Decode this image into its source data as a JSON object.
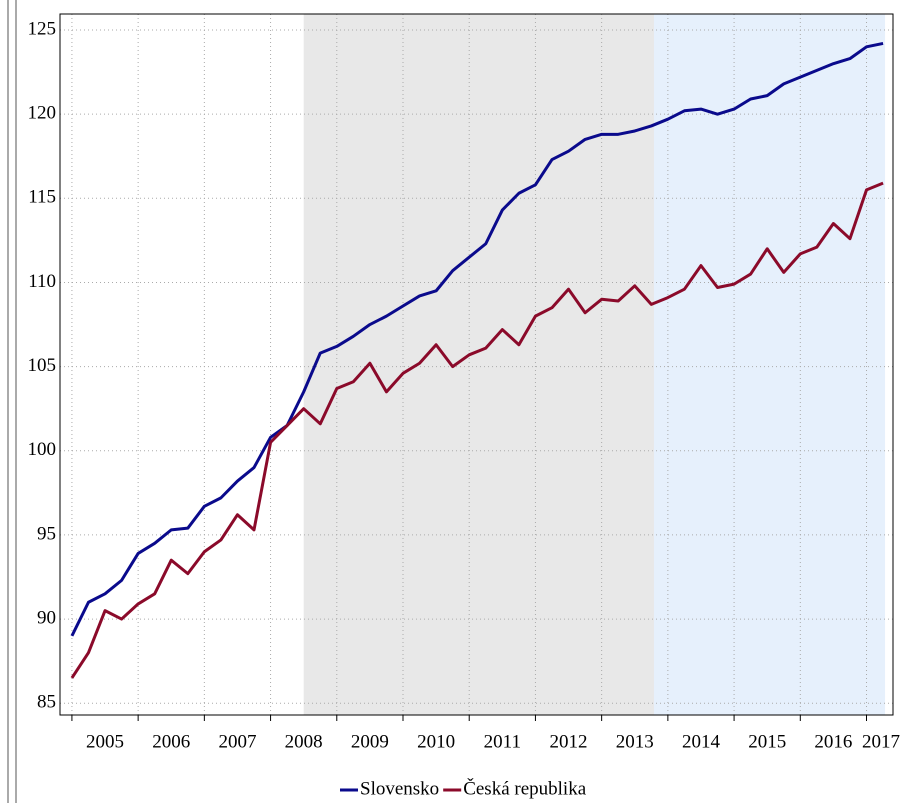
{
  "chart_data": {
    "type": "line",
    "x": [
      2005,
      2005.25,
      2005.5,
      2005.75,
      2006,
      2006.25,
      2006.5,
      2006.75,
      2007,
      2007.25,
      2007.5,
      2007.75,
      2008,
      2008.25,
      2008.5,
      2008.75,
      2009,
      2009.25,
      2009.5,
      2009.75,
      2010,
      2010.25,
      2010.5,
      2010.75,
      2011,
      2011.25,
      2011.5,
      2011.75,
      2012,
      2012.25,
      2012.5,
      2012.75,
      2013,
      2013.25,
      2013.5,
      2013.75,
      2014,
      2014.25,
      2014.5,
      2014.75,
      2015,
      2015.25,
      2015.5,
      2015.75,
      2016,
      2016.25,
      2016.5,
      2016.75,
      2017,
      2017.25
    ],
    "series": [
      {
        "name": "Slovensko",
        "color": "#0a0a8c",
        "values": [
          89.0,
          91.0,
          91.5,
          92.3,
          93.9,
          94.5,
          95.3,
          95.4,
          96.7,
          97.2,
          98.2,
          99.0,
          100.8,
          101.5,
          103.5,
          105.8,
          106.2,
          106.8,
          107.5,
          108.0,
          108.6,
          109.2,
          109.5,
          110.7,
          111.5,
          112.3,
          114.3,
          115.3,
          115.8,
          117.3,
          117.8,
          118.5,
          118.8,
          118.8,
          119.0,
          119.3,
          119.7,
          120.2,
          120.3,
          120.0,
          120.3,
          120.9,
          121.1,
          121.8,
          122.2,
          122.6,
          123.0,
          123.3,
          124.0,
          124.2
        ]
      },
      {
        "name": "Česká republika",
        "color": "#8b0a2a",
        "values": [
          86.5,
          88.0,
          90.5,
          90.0,
          90.9,
          91.5,
          93.5,
          92.7,
          94.0,
          94.7,
          96.2,
          95.3,
          100.5,
          101.5,
          102.5,
          101.6,
          103.7,
          104.1,
          105.2,
          103.5,
          104.6,
          105.2,
          106.3,
          105.0,
          105.7,
          106.1,
          107.2,
          106.3,
          108.0,
          108.5,
          109.6,
          108.2,
          109.0,
          108.9,
          109.8,
          108.7,
          109.1,
          109.6,
          111.0,
          109.7,
          109.9,
          110.5,
          112.0,
          110.6,
          111.7,
          112.1,
          113.5,
          112.6,
          115.5,
          115.9
        ]
      }
    ],
    "xlim": [
      2004.82,
      2017.4
    ],
    "xticks": [
      2005,
      2006,
      2007,
      2008,
      2009,
      2010,
      2011,
      2012,
      2013,
      2014,
      2015,
      2016,
      2017
    ],
    "ylim": [
      84.3,
      125.95
    ],
    "yticks": [
      85,
      90,
      95,
      100,
      105,
      110,
      115,
      120,
      125
    ],
    "grid": true,
    "shaded_regions": [
      {
        "start": 2008.5,
        "end": 2013.79,
        "color": "#e8e8e8"
      },
      {
        "start": 2013.79,
        "end": 2017.28,
        "color": "#e6f0fc"
      }
    ]
  }
}
